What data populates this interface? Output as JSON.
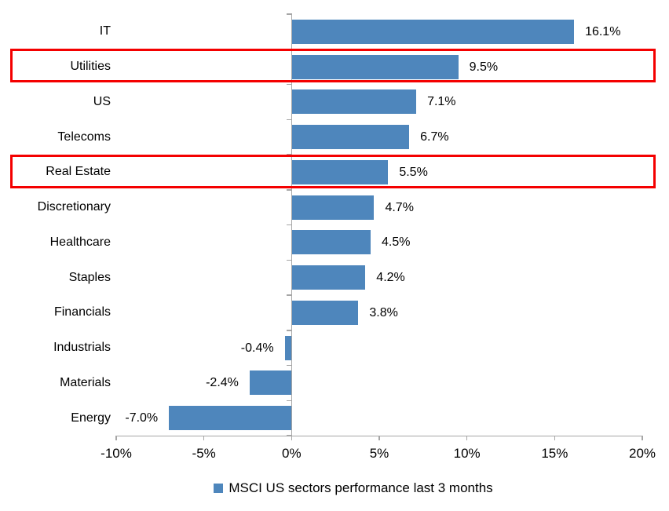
{
  "chart_data": {
    "type": "bar",
    "orientation": "horizontal",
    "title": "",
    "categories": [
      "IT",
      "Utilities",
      "US",
      "Telecoms",
      "Real Estate",
      "Discretionary",
      "Healthcare",
      "Staples",
      "Financials",
      "Industrials",
      "Materials",
      "Energy"
    ],
    "values": [
      16.1,
      9.5,
      7.1,
      6.7,
      5.5,
      4.7,
      4.5,
      4.2,
      3.8,
      -0.4,
      -2.4,
      -7.0
    ],
    "value_labels": [
      "16.1%",
      "9.5%",
      "7.1%",
      "6.7%",
      "5.5%",
      "4.7%",
      "4.5%",
      "4.2%",
      "3.8%",
      "-0.4%",
      "-2.4%",
      "-7.0%"
    ],
    "highlighted_categories": [
      "Utilities",
      "Real Estate"
    ],
    "x_axis": {
      "min": -10,
      "max": 20,
      "tick_step": 5,
      "tick_labels": [
        "-10%",
        "-5%",
        "0%",
        "5%",
        "10%",
        "15%",
        "20%"
      ]
    },
    "grid": false,
    "legend": {
      "label": "MSCI US sectors performance last 3 months",
      "position": "bottom-center"
    },
    "colors": {
      "bar": "#4E86BC",
      "highlight_outline": "#F40000",
      "axis": "#A6A6A6",
      "text": "#000000",
      "background": "#FFFFFF"
    }
  }
}
